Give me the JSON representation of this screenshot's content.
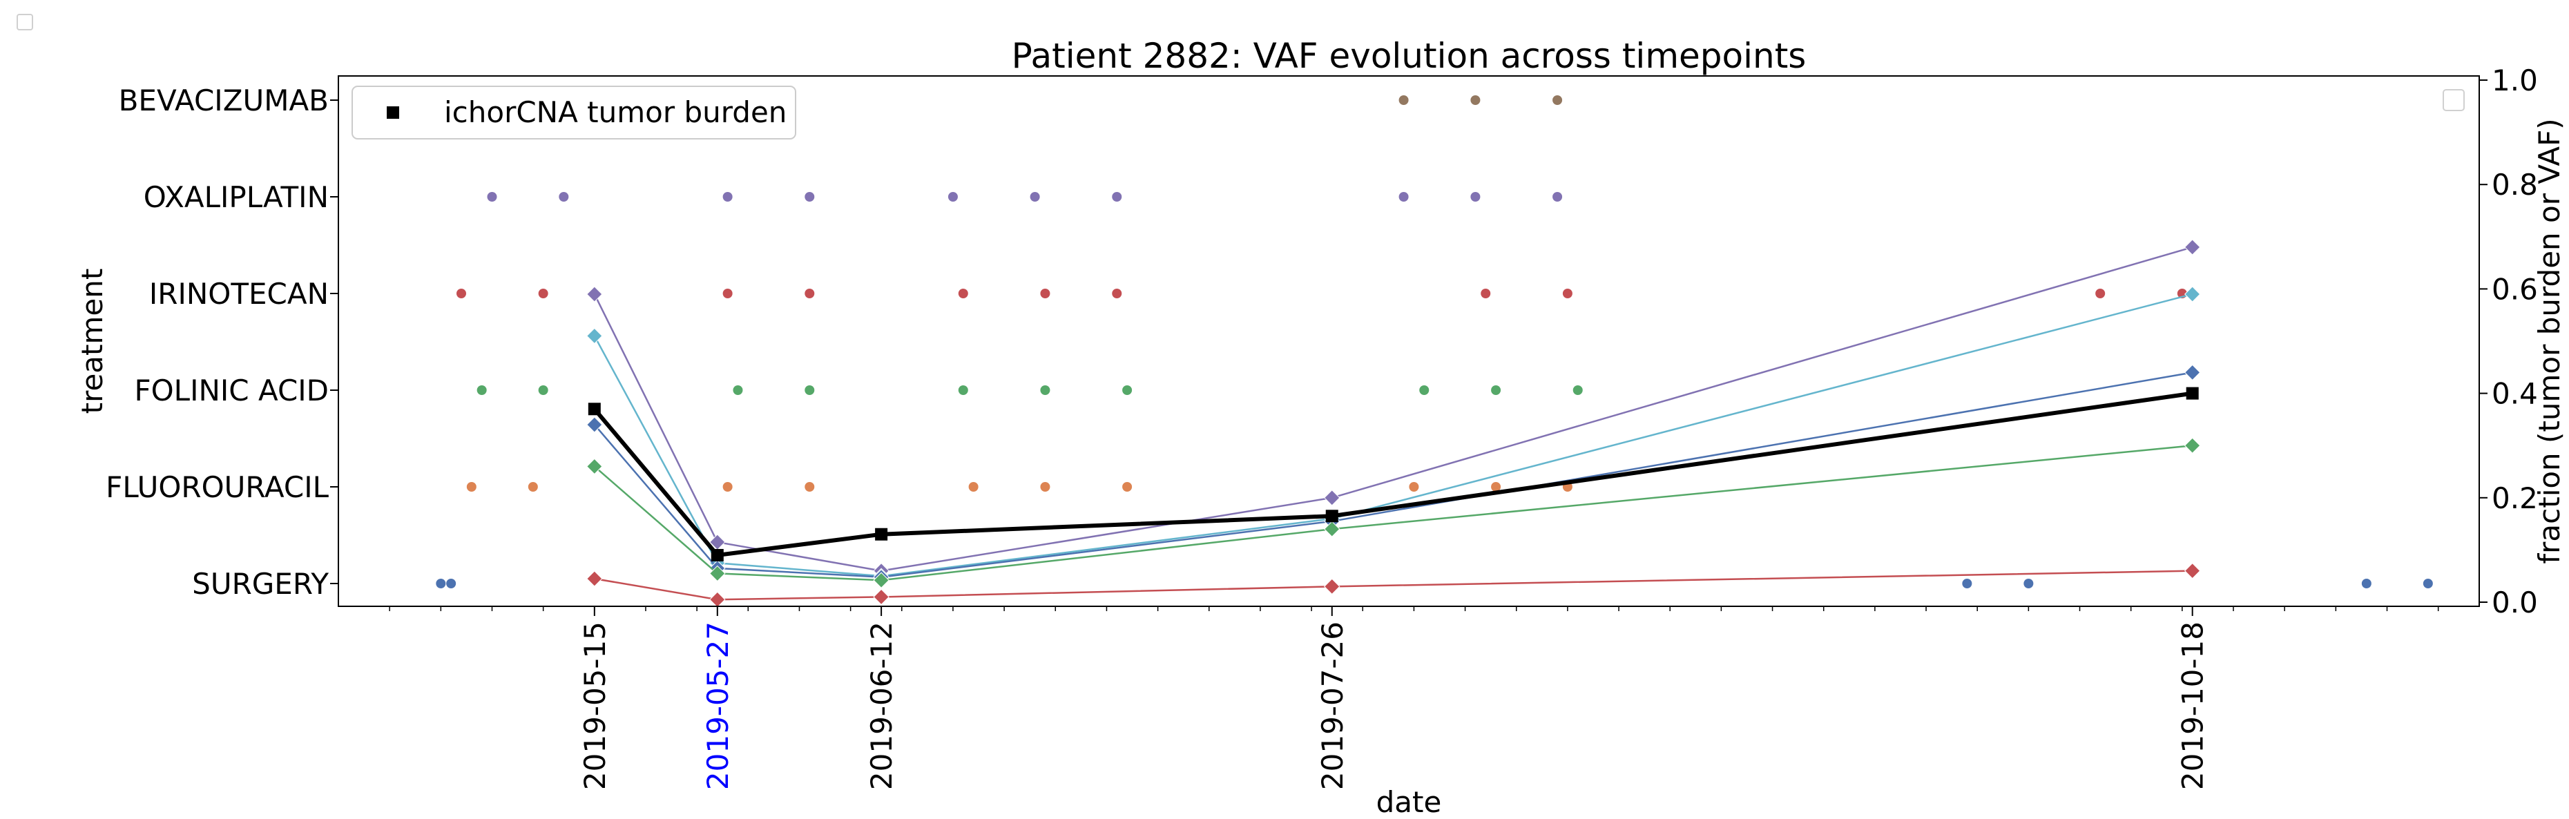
{
  "chart_data": {
    "type": "scatter",
    "title": "Patient 2882: VAF evolution across timepoints",
    "xlabel": "date",
    "ylabel_left": "treatment",
    "ylabel_right": "fraction (tumor burden or VAF)",
    "x_range": [
      "2019-04-20",
      "2019-11-15"
    ],
    "y_right_range": [
      0.0,
      1.0
    ],
    "y_right_ticks": [
      "0.0",
      "0.2",
      "0.4",
      "0.6",
      "0.8",
      "1.0"
    ],
    "grid": false,
    "legend_position": "top-left",
    "legend": {
      "label": "ichorCNA tumor burden"
    },
    "sample_dates": [
      {
        "label": "2019-05-15",
        "date": "2019-05-15",
        "color": "#000000"
      },
      {
        "label": "2019-05-27",
        "date": "2019-05-27",
        "color": "#0000ff"
      },
      {
        "label": "2019-06-12",
        "date": "2019-06-12",
        "color": "#000000"
      },
      {
        "label": "2019-07-26",
        "date": "2019-07-26",
        "color": "#000000"
      },
      {
        "label": "2019-10-18",
        "date": "2019-10-18",
        "color": "#000000"
      }
    ],
    "treatments": [
      {
        "name": "SURGERY",
        "color": "#4c72b0",
        "dates": [
          "2019-04-30",
          "2019-05-01",
          "2019-09-26",
          "2019-10-02",
          "2019-11-04",
          "2019-11-10"
        ]
      },
      {
        "name": "FLUOROURACIL",
        "color": "#dd8452",
        "dates": [
          "2019-05-03",
          "2019-05-09",
          "2019-05-28",
          "2019-06-05",
          "2019-06-21",
          "2019-06-28",
          "2019-07-06",
          "2019-08-03",
          "2019-08-11",
          "2019-08-18"
        ]
      },
      {
        "name": "FOLINIC ACID",
        "color": "#55a868",
        "dates": [
          "2019-05-04",
          "2019-05-10",
          "2019-05-29",
          "2019-06-05",
          "2019-06-20",
          "2019-06-28",
          "2019-07-06",
          "2019-08-04",
          "2019-08-11",
          "2019-08-19"
        ]
      },
      {
        "name": "IRINOTECAN",
        "color": "#c44e52",
        "dates": [
          "2019-05-02",
          "2019-05-10",
          "2019-05-15",
          "2019-05-28",
          "2019-06-05",
          "2019-06-20",
          "2019-06-28",
          "2019-07-05",
          "2019-08-10",
          "2019-08-18",
          "2019-10-09",
          "2019-10-17"
        ]
      },
      {
        "name": "OXALIPLATIN",
        "color": "#8172b2",
        "dates": [
          "2019-05-05",
          "2019-05-12",
          "2019-05-28",
          "2019-06-05",
          "2019-06-19",
          "2019-06-27",
          "2019-07-05",
          "2019-08-02",
          "2019-08-09",
          "2019-08-17"
        ]
      },
      {
        "name": "BEVACIZUMAB",
        "color": "#937860",
        "dates": [
          "2019-08-02",
          "2019-08-09",
          "2019-08-17"
        ]
      }
    ],
    "series": [
      {
        "name": "ichorCNA tumor burden",
        "color": "#000000",
        "marker": "square",
        "width": 6,
        "points": [
          [
            "2019-05-15",
            0.37
          ],
          [
            "2019-05-27",
            0.09
          ],
          [
            "2019-06-12",
            0.13
          ],
          [
            "2019-07-26",
            0.165
          ],
          [
            "2019-10-18",
            0.4
          ]
        ]
      },
      {
        "color": "#8172b2",
        "marker": "diamond",
        "width": 2.5,
        "points": [
          [
            "2019-05-15",
            0.59
          ],
          [
            "2019-05-27",
            0.115
          ],
          [
            "2019-06-12",
            0.06
          ],
          [
            "2019-07-26",
            0.2
          ],
          [
            "2019-10-18",
            0.68
          ]
        ]
      },
      {
        "color": "#64b5cd",
        "marker": "diamond",
        "width": 2.5,
        "points": [
          [
            "2019-05-15",
            0.51
          ],
          [
            "2019-05-27",
            0.075
          ],
          [
            "2019-06-12",
            0.05
          ],
          [
            "2019-07-26",
            0.16
          ],
          [
            "2019-10-18",
            0.59
          ]
        ]
      },
      {
        "color": "#4c72b0",
        "marker": "diamond",
        "width": 2.5,
        "points": [
          [
            "2019-05-15",
            0.34
          ],
          [
            "2019-05-27",
            0.065
          ],
          [
            "2019-06-12",
            0.048
          ],
          [
            "2019-07-26",
            0.155
          ],
          [
            "2019-10-18",
            0.44
          ]
        ]
      },
      {
        "color": "#55a868",
        "marker": "diamond",
        "width": 2.5,
        "points": [
          [
            "2019-05-15",
            0.26
          ],
          [
            "2019-05-27",
            0.055
          ],
          [
            "2019-06-12",
            0.042
          ],
          [
            "2019-07-26",
            0.14
          ],
          [
            "2019-10-18",
            0.3
          ]
        ]
      },
      {
        "color": "#c44e52",
        "marker": "diamond",
        "width": 2.5,
        "points": [
          [
            "2019-05-15",
            0.045
          ],
          [
            "2019-05-27",
            0.005
          ],
          [
            "2019-06-12",
            0.01
          ],
          [
            "2019-07-26",
            0.03
          ],
          [
            "2019-10-18",
            0.06
          ]
        ]
      }
    ]
  }
}
